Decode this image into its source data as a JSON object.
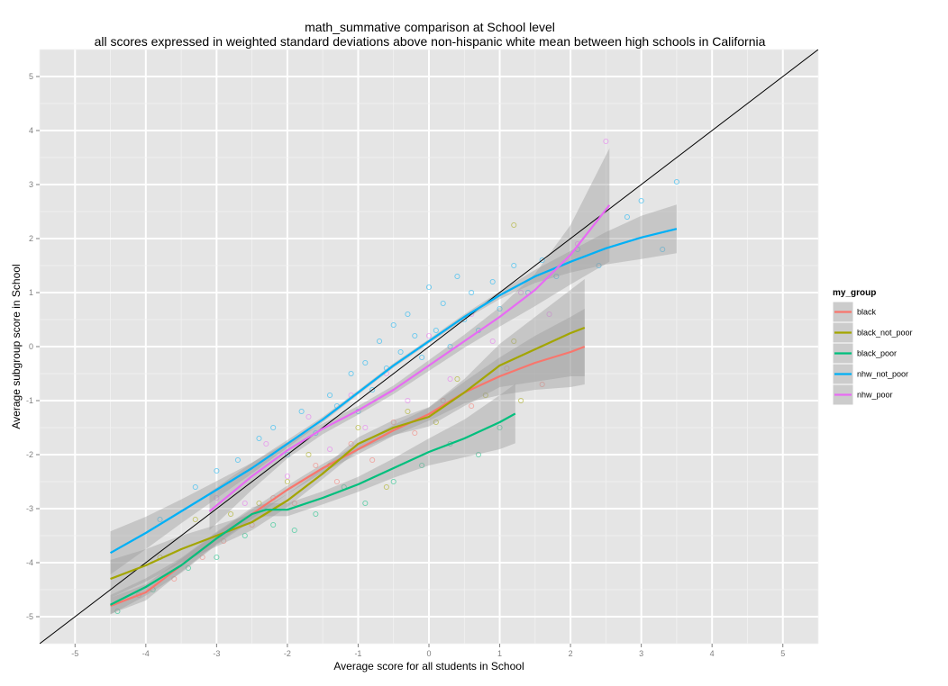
{
  "chart_data": {
    "type": "scatter",
    "title": "math_summative comparison at School level",
    "subtitle": "all scores expressed in weighted standard deviations above non-hispanic white mean between high schools in California",
    "xlabel": "Average score for all students in School",
    "ylabel": "Average subgroup score in School",
    "xlim": [
      -5.5,
      5.5
    ],
    "ylim": [
      -5.5,
      5.5
    ],
    "x_ticks": [
      -5,
      -4,
      -3,
      -2,
      -1,
      0,
      1,
      2,
      3,
      4,
      5
    ],
    "y_ticks": [
      -5,
      -4,
      -3,
      -2,
      -1,
      0,
      1,
      2,
      3,
      4,
      5
    ],
    "grid": true,
    "legend": {
      "title": "my_group",
      "placement": "right",
      "entries": [
        "black",
        "black_not_poor",
        "black_poor",
        "nhw_not_poor",
        "nhw_poor"
      ]
    },
    "reference_line": {
      "slope": 1,
      "intercept": 0,
      "color": "#000000"
    },
    "series": [
      {
        "name": "black",
        "color": "#F8766D",
        "smooth": [
          [
            -4.5,
            -4.8
          ],
          [
            -4.0,
            -4.55
          ],
          [
            -3.5,
            -4.05
          ],
          [
            -3.0,
            -3.55
          ],
          [
            -2.5,
            -3.1
          ],
          [
            -2.0,
            -2.65
          ],
          [
            -1.5,
            -2.25
          ],
          [
            -1.0,
            -1.9
          ],
          [
            -0.5,
            -1.55
          ],
          [
            0.0,
            -1.25
          ],
          [
            0.5,
            -0.85
          ],
          [
            1.0,
            -0.55
          ],
          [
            1.5,
            -0.3
          ],
          [
            2.0,
            -0.1
          ],
          [
            2.2,
            0.0
          ]
        ],
        "band": [
          0.15,
          0.15,
          0.12,
          0.1,
          0.09,
          0.08,
          0.08,
          0.09,
          0.1,
          0.12,
          0.2,
          0.35,
          0.5,
          0.65,
          0.7
        ],
        "points": [
          [
            -4.1,
            -4.6
          ],
          [
            -3.6,
            -4.3
          ],
          [
            -3.2,
            -3.9
          ],
          [
            -2.9,
            -3.6
          ],
          [
            -2.5,
            -3.3
          ],
          [
            -2.2,
            -2.8
          ],
          [
            -1.9,
            -2.9
          ],
          [
            -1.6,
            -2.2
          ],
          [
            -1.3,
            -2.5
          ],
          [
            -1.1,
            -1.8
          ],
          [
            -0.8,
            -2.1
          ],
          [
            -0.5,
            -1.4
          ],
          [
            -0.2,
            -1.6
          ],
          [
            0.2,
            -1.0
          ],
          [
            0.6,
            -1.1
          ],
          [
            1.1,
            -0.4
          ],
          [
            1.6,
            -0.7
          ]
        ]
      },
      {
        "name": "black_not_poor",
        "color": "#A3A500",
        "smooth": [
          [
            -4.5,
            -4.3
          ],
          [
            -4.0,
            -4.05
          ],
          [
            -3.5,
            -3.75
          ],
          [
            -3.0,
            -3.5
          ],
          [
            -2.5,
            -3.25
          ],
          [
            -2.0,
            -2.85
          ],
          [
            -1.5,
            -2.35
          ],
          [
            -1.0,
            -1.8
          ],
          [
            -0.5,
            -1.5
          ],
          [
            0.0,
            -1.3
          ],
          [
            0.5,
            -0.85
          ],
          [
            1.0,
            -0.35
          ],
          [
            1.5,
            -0.05
          ],
          [
            2.0,
            0.25
          ],
          [
            2.2,
            0.35
          ]
        ],
        "band": [
          0.35,
          0.3,
          0.25,
          0.2,
          0.15,
          0.12,
          0.1,
          0.12,
          0.14,
          0.18,
          0.25,
          0.4,
          0.6,
          0.8,
          0.9
        ],
        "points": [
          [
            -3.8,
            -3.9
          ],
          [
            -3.3,
            -3.2
          ],
          [
            -2.8,
            -3.1
          ],
          [
            -2.4,
            -2.9
          ],
          [
            -2.0,
            -2.5
          ],
          [
            -1.7,
            -2.0
          ],
          [
            -1.4,
            -2.2
          ],
          [
            -1.0,
            -1.5
          ],
          [
            -0.6,
            -2.6
          ],
          [
            -0.3,
            -1.2
          ],
          [
            0.1,
            -1.4
          ],
          [
            0.4,
            -0.6
          ],
          [
            0.8,
            -0.9
          ],
          [
            1.2,
            0.1
          ],
          [
            1.2,
            2.25
          ],
          [
            1.3,
            -1.0
          ]
        ]
      },
      {
        "name": "black_poor",
        "color": "#00BF7D",
        "smooth": [
          [
            -4.5,
            -4.78
          ],
          [
            -4.0,
            -4.45
          ],
          [
            -3.5,
            -4.05
          ],
          [
            -3.0,
            -3.55
          ],
          [
            -2.5,
            -3.1
          ],
          [
            -2.3,
            -3.02
          ],
          [
            -2.0,
            -3.02
          ],
          [
            -1.5,
            -2.8
          ],
          [
            -1.0,
            -2.55
          ],
          [
            -0.5,
            -2.25
          ],
          [
            0.0,
            -1.95
          ],
          [
            0.5,
            -1.7
          ],
          [
            1.0,
            -1.4
          ],
          [
            1.22,
            -1.24
          ]
        ],
        "band": [
          0.18,
          0.16,
          0.14,
          0.12,
          0.12,
          0.12,
          0.12,
          0.12,
          0.14,
          0.18,
          0.25,
          0.35,
          0.5,
          0.55
        ],
        "points": [
          [
            -4.4,
            -4.9
          ],
          [
            -3.9,
            -4.5
          ],
          [
            -3.4,
            -4.1
          ],
          [
            -3.0,
            -3.9
          ],
          [
            -2.6,
            -3.5
          ],
          [
            -2.2,
            -3.3
          ],
          [
            -1.9,
            -3.4
          ],
          [
            -1.6,
            -3.1
          ],
          [
            -1.2,
            -2.6
          ],
          [
            -0.9,
            -2.9
          ],
          [
            -0.5,
            -2.5
          ],
          [
            -0.1,
            -2.2
          ],
          [
            0.3,
            -1.8
          ],
          [
            0.7,
            -2.0
          ],
          [
            1.0,
            -1.5
          ]
        ]
      },
      {
        "name": "nhw_not_poor",
        "color": "#00B0F6",
        "smooth": [
          [
            -4.5,
            -3.82
          ],
          [
            -4.0,
            -3.45
          ],
          [
            -3.5,
            -3.05
          ],
          [
            -3.0,
            -2.65
          ],
          [
            -2.5,
            -2.25
          ],
          [
            -2.0,
            -1.8
          ],
          [
            -1.5,
            -1.35
          ],
          [
            -1.0,
            -0.85
          ],
          [
            -0.5,
            -0.35
          ],
          [
            0.0,
            0.1
          ],
          [
            0.5,
            0.55
          ],
          [
            1.0,
            0.95
          ],
          [
            1.5,
            1.3
          ],
          [
            2.0,
            1.57
          ],
          [
            2.5,
            1.82
          ],
          [
            3.0,
            2.02
          ],
          [
            3.5,
            2.18
          ]
        ],
        "band": [
          0.4,
          0.3,
          0.22,
          0.16,
          0.1,
          0.07,
          0.05,
          0.04,
          0.04,
          0.04,
          0.05,
          0.07,
          0.12,
          0.2,
          0.3,
          0.4,
          0.45
        ],
        "points": [
          [
            -3.8,
            -3.2
          ],
          [
            -3.3,
            -2.6
          ],
          [
            -3.0,
            -2.3
          ],
          [
            -2.7,
            -2.1
          ],
          [
            -2.4,
            -1.7
          ],
          [
            -2.2,
            -1.5
          ],
          [
            -2.0,
            -2.0
          ],
          [
            -1.8,
            -1.2
          ],
          [
            -1.6,
            -1.6
          ],
          [
            -1.4,
            -0.9
          ],
          [
            -1.3,
            -1.1
          ],
          [
            -1.1,
            -0.5
          ],
          [
            -1.0,
            -1.2
          ],
          [
            -0.9,
            -0.3
          ],
          [
            -0.8,
            -0.8
          ],
          [
            -0.7,
            0.1
          ],
          [
            -0.6,
            -0.4
          ],
          [
            -0.5,
            0.4
          ],
          [
            -0.4,
            -0.1
          ],
          [
            -0.3,
            0.6
          ],
          [
            -0.2,
            0.2
          ],
          [
            -0.1,
            -0.2
          ],
          [
            0.0,
            1.1
          ],
          [
            0.1,
            0.3
          ],
          [
            0.2,
            0.8
          ],
          [
            0.3,
            0.0
          ],
          [
            0.4,
            1.3
          ],
          [
            0.5,
            0.5
          ],
          [
            0.6,
            1.0
          ],
          [
            0.7,
            0.3
          ],
          [
            0.9,
            1.2
          ],
          [
            1.0,
            0.7
          ],
          [
            1.2,
            1.5
          ],
          [
            1.4,
            1.0
          ],
          [
            1.6,
            1.6
          ],
          [
            1.8,
            1.3
          ],
          [
            2.1,
            1.8
          ],
          [
            2.4,
            1.5
          ],
          [
            2.8,
            2.4
          ],
          [
            3.0,
            2.7
          ],
          [
            3.3,
            1.8
          ],
          [
            3.5,
            3.05
          ]
        ]
      },
      {
        "name": "nhw_poor",
        "color": "#E76BF3",
        "smooth": [
          [
            -3.1,
            -3.05
          ],
          [
            -2.5,
            -2.4
          ],
          [
            -2.0,
            -1.92
          ],
          [
            -1.5,
            -1.52
          ],
          [
            -1.0,
            -1.18
          ],
          [
            -0.5,
            -0.8
          ],
          [
            0.0,
            -0.35
          ],
          [
            0.5,
            0.1
          ],
          [
            1.0,
            0.55
          ],
          [
            1.5,
            1.05
          ],
          [
            2.0,
            1.7
          ],
          [
            2.55,
            2.62
          ]
        ],
        "band": [
          0.35,
          0.25,
          0.15,
          0.1,
          0.08,
          0.08,
          0.1,
          0.12,
          0.18,
          0.3,
          0.55,
          1.05
        ],
        "points": [
          [
            -3.0,
            -2.8
          ],
          [
            -2.6,
            -2.9
          ],
          [
            -2.3,
            -1.8
          ],
          [
            -2.0,
            -2.4
          ],
          [
            -1.7,
            -1.3
          ],
          [
            -1.4,
            -1.9
          ],
          [
            -1.1,
            -0.9
          ],
          [
            -0.9,
            -1.5
          ],
          [
            -0.6,
            -0.5
          ],
          [
            -0.3,
            -1.0
          ],
          [
            0.0,
            0.2
          ],
          [
            0.3,
            -0.6
          ],
          [
            0.6,
            0.6
          ],
          [
            0.9,
            0.1
          ],
          [
            1.3,
            1.0
          ],
          [
            1.7,
            0.6
          ],
          [
            2.1,
            1.9
          ],
          [
            2.5,
            3.8
          ]
        ]
      }
    ]
  }
}
